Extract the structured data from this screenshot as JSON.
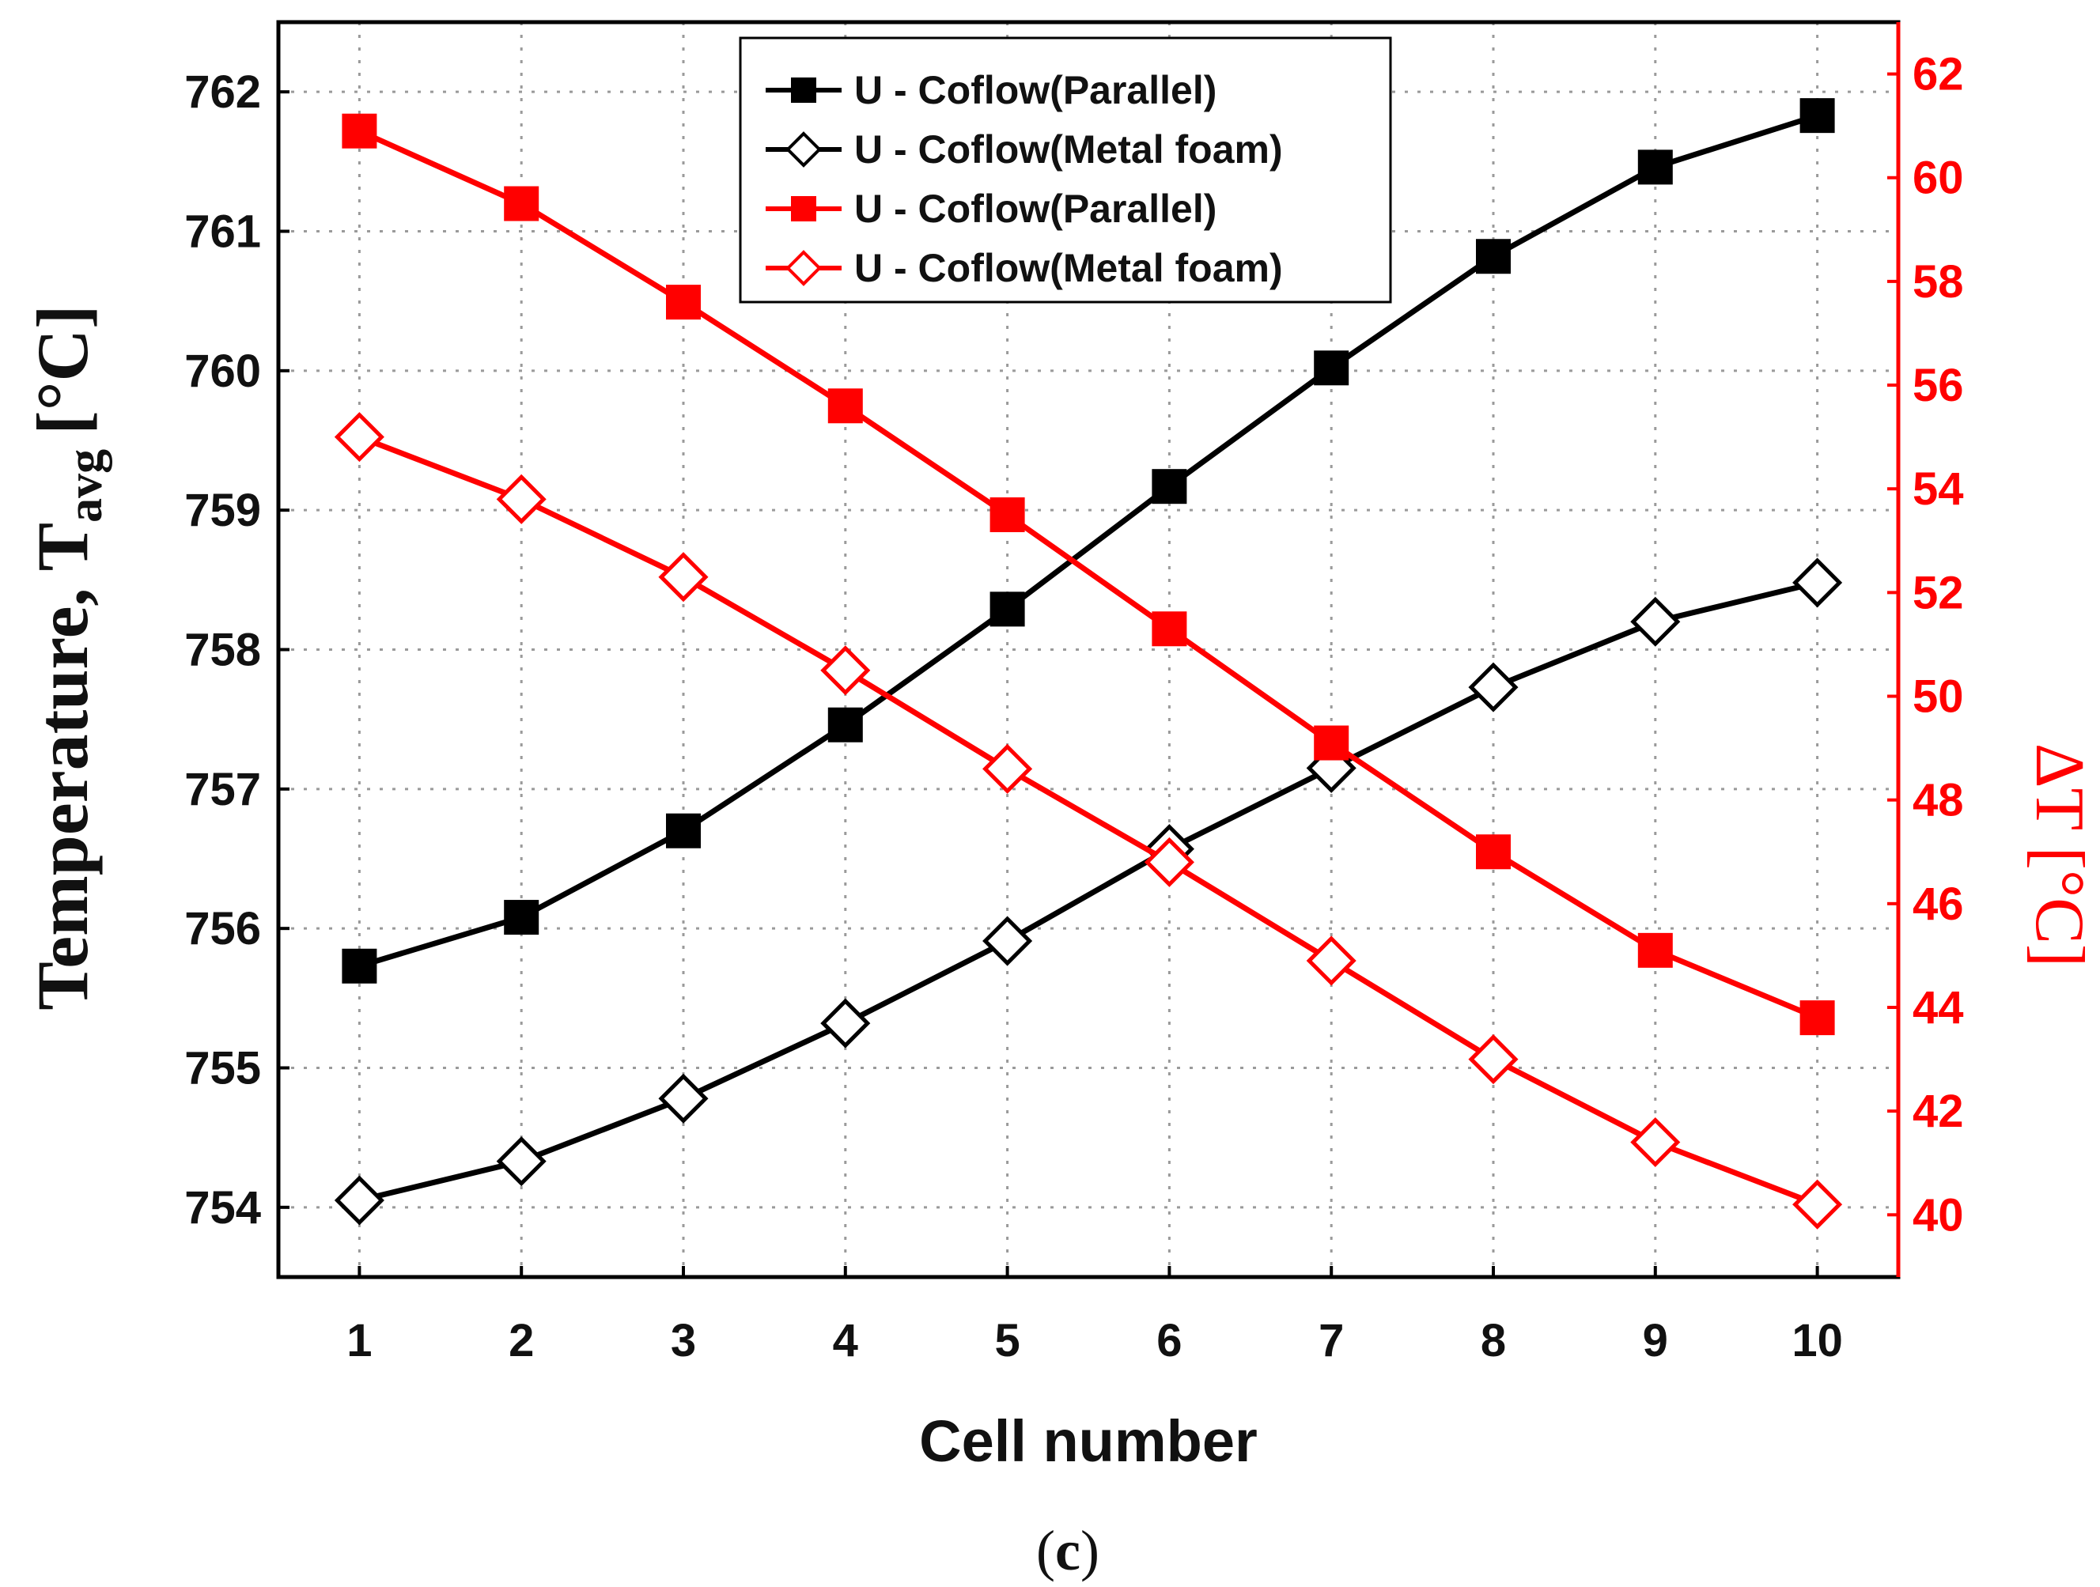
{
  "chart_data": {
    "type": "line",
    "xlabel": "Cell number",
    "ylabel": {
      "main": "Temperature, T",
      "subscript": "avg",
      "unit": "[°C]"
    },
    "y2label": "ΔT [°C]",
    "caption": {
      "open": "(",
      "letter": "c",
      "close": ")"
    },
    "x": [
      1,
      2,
      3,
      4,
      5,
      6,
      7,
      8,
      9,
      10
    ],
    "xlim": [
      0.5,
      10.5
    ],
    "ylim": [
      753.5,
      762.5
    ],
    "y2lim": [
      38.8,
      63.0
    ],
    "yticks": [
      754,
      755,
      756,
      757,
      758,
      759,
      760,
      761,
      762
    ],
    "y2ticks": [
      40,
      42,
      44,
      46,
      48,
      50,
      52,
      54,
      56,
      58,
      60,
      62
    ],
    "grid": true,
    "legend_position": "top-center",
    "colors": {
      "left": "#000000",
      "right": "#ff0000"
    },
    "series": [
      {
        "name": "U - Coflow(Parallel)",
        "axis": "left",
        "marker": "filled-square",
        "color": "#000000",
        "values": [
          755.73,
          756.08,
          756.7,
          757.46,
          758.29,
          759.17,
          760.02,
          760.82,
          761.46,
          761.83
        ]
      },
      {
        "name": "U - Coflow(Metal foam)",
        "axis": "left",
        "marker": "open-diamond",
        "color": "#000000",
        "values": [
          754.05,
          754.33,
          754.78,
          755.32,
          755.91,
          756.57,
          757.15,
          757.73,
          758.2,
          758.48
        ]
      },
      {
        "name": "U - Coflow(Parallel)",
        "axis": "right",
        "marker": "filled-square",
        "color": "#ff0000",
        "values": [
          60.9,
          59.5,
          57.6,
          55.6,
          53.5,
          51.3,
          49.1,
          47.0,
          45.1,
          43.8
        ]
      },
      {
        "name": "U - Coflow(Metal foam)",
        "axis": "right",
        "marker": "open-diamond",
        "color": "#ff0000",
        "values": [
          55.0,
          53.8,
          52.3,
          50.5,
          48.6,
          46.8,
          44.9,
          43.0,
          41.4,
          40.2
        ]
      }
    ]
  }
}
